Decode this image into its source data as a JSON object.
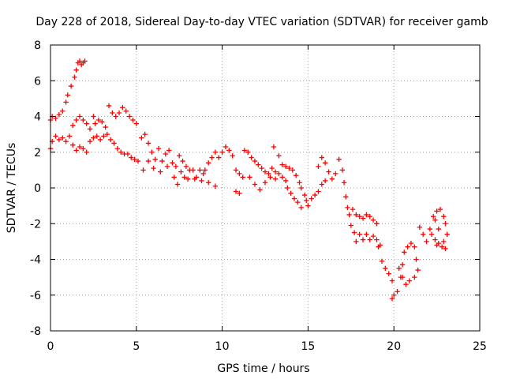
{
  "chart_data": {
    "type": "scatter",
    "title": "Day 228 of 2018, Sidereal Day-to-day VTEC variation (SDTVAR) for receiver gamb",
    "xlabel": "GPS time / hours",
    "ylabel": "SDTVAR / TECUs",
    "xlim": [
      0,
      25
    ],
    "ylim": [
      -8,
      8
    ],
    "xticks": [
      0,
      5,
      10,
      15,
      20,
      25
    ],
    "yticks": [
      -8,
      -6,
      -4,
      -2,
      0,
      2,
      4,
      6,
      8
    ],
    "xtick_labels": [
      "0",
      "5",
      "10",
      "15",
      "20",
      "25"
    ],
    "ytick_labels": [
      "-8",
      "-6",
      "-4",
      "-2",
      "0",
      "2",
      "4",
      "6",
      "8"
    ],
    "grid": true,
    "marker": "+",
    "colors": {
      "series": "#ff0000",
      "grid": "#a0a0a0",
      "axis": "#000000"
    },
    "series": [
      {
        "name": "SDTVAR",
        "points": [
          [
            0.0,
            3.8
          ],
          [
            0.1,
            4.0
          ],
          [
            0.3,
            3.9
          ],
          [
            0.5,
            4.1
          ],
          [
            0.7,
            4.3
          ],
          [
            0.9,
            4.8
          ],
          [
            1.0,
            5.2
          ],
          [
            1.2,
            5.7
          ],
          [
            1.4,
            6.2
          ],
          [
            1.5,
            6.6
          ],
          [
            1.6,
            7.0
          ],
          [
            1.7,
            7.1
          ],
          [
            1.8,
            6.9
          ],
          [
            1.9,
            7.0
          ],
          [
            2.0,
            7.1
          ],
          [
            0.0,
            2.2
          ],
          [
            0.1,
            2.6
          ],
          [
            0.3,
            2.9
          ],
          [
            0.5,
            2.7
          ],
          [
            0.7,
            2.8
          ],
          [
            0.9,
            2.6
          ],
          [
            1.1,
            2.9
          ],
          [
            1.3,
            2.4
          ],
          [
            1.5,
            2.1
          ],
          [
            1.7,
            2.3
          ],
          [
            1.9,
            2.2
          ],
          [
            2.1,
            2.0
          ],
          [
            2.3,
            2.6
          ],
          [
            2.5,
            2.8
          ],
          [
            2.7,
            2.9
          ],
          [
            2.9,
            2.7
          ],
          [
            3.1,
            2.9
          ],
          [
            3.3,
            3.0
          ],
          [
            3.5,
            2.7
          ],
          [
            3.7,
            2.5
          ],
          [
            3.9,
            2.2
          ],
          [
            4.1,
            2.0
          ],
          [
            4.3,
            1.9
          ],
          [
            4.5,
            1.9
          ],
          [
            4.7,
            1.7
          ],
          [
            4.9,
            1.6
          ],
          [
            5.1,
            1.5
          ],
          [
            1.3,
            3.5
          ],
          [
            1.5,
            3.8
          ],
          [
            1.7,
            4.0
          ],
          [
            1.9,
            3.8
          ],
          [
            2.1,
            3.6
          ],
          [
            2.3,
            3.3
          ],
          [
            2.5,
            4.0
          ],
          [
            2.6,
            3.6
          ],
          [
            2.8,
            3.8
          ],
          [
            3.0,
            3.7
          ],
          [
            3.2,
            3.4
          ],
          [
            3.4,
            4.6
          ],
          [
            3.6,
            4.2
          ],
          [
            3.8,
            4.0
          ],
          [
            4.0,
            4.2
          ],
          [
            4.2,
            4.5
          ],
          [
            4.4,
            4.3
          ],
          [
            4.6,
            4.0
          ],
          [
            4.8,
            3.8
          ],
          [
            5.0,
            3.6
          ],
          [
            5.3,
            2.8
          ],
          [
            5.5,
            3.0
          ],
          [
            5.7,
            2.5
          ],
          [
            5.9,
            2.0
          ],
          [
            6.1,
            1.6
          ],
          [
            6.3,
            2.2
          ],
          [
            6.5,
            1.5
          ],
          [
            6.7,
            1.9
          ],
          [
            6.9,
            2.1
          ],
          [
            7.1,
            1.4
          ],
          [
            7.3,
            1.2
          ],
          [
            7.5,
            1.8
          ],
          [
            7.7,
            1.5
          ],
          [
            7.9,
            1.2
          ],
          [
            8.1,
            1.0
          ],
          [
            8.3,
            1.0
          ],
          [
            8.5,
            0.6
          ],
          [
            8.7,
            1.0
          ],
          [
            8.9,
            0.8
          ],
          [
            5.4,
            1.0
          ],
          [
            5.7,
            1.5
          ],
          [
            6.0,
            1.1
          ],
          [
            6.4,
            0.9
          ],
          [
            6.8,
            1.2
          ],
          [
            7.2,
            0.6
          ],
          [
            7.4,
            0.2
          ],
          [
            7.6,
            0.9
          ],
          [
            7.8,
            0.6
          ],
          [
            8.0,
            0.5
          ],
          [
            8.4,
            0.5
          ],
          [
            8.8,
            0.4
          ],
          [
            9.2,
            0.3
          ],
          [
            9.6,
            0.1
          ],
          [
            9.0,
            1.0
          ],
          [
            9.2,
            1.4
          ],
          [
            9.4,
            1.7
          ],
          [
            9.6,
            2.0
          ],
          [
            9.8,
            1.7
          ],
          [
            10.0,
            2.0
          ],
          [
            10.2,
            2.3
          ],
          [
            10.4,
            2.1
          ],
          [
            10.6,
            1.8
          ],
          [
            10.8,
            1.0
          ],
          [
            11.0,
            0.8
          ],
          [
            11.2,
            0.6
          ],
          [
            10.8,
            -0.2
          ],
          [
            11.0,
            -0.3
          ],
          [
            11.3,
            2.1
          ],
          [
            11.5,
            2.0
          ],
          [
            11.7,
            1.7
          ],
          [
            11.9,
            1.5
          ],
          [
            12.1,
            1.3
          ],
          [
            12.3,
            1.1
          ],
          [
            12.5,
            0.9
          ],
          [
            12.7,
            0.8
          ],
          [
            12.9,
            1.1
          ],
          [
            13.1,
            0.9
          ],
          [
            13.3,
            0.8
          ],
          [
            13.5,
            0.6
          ],
          [
            13.7,
            0.4
          ],
          [
            11.6,
            0.6
          ],
          [
            11.9,
            0.2
          ],
          [
            12.2,
            -0.1
          ],
          [
            12.5,
            0.3
          ],
          [
            12.8,
            0.6
          ],
          [
            13.1,
            0.5
          ],
          [
            13.0,
            2.3
          ],
          [
            13.3,
            1.8
          ],
          [
            13.5,
            1.3
          ],
          [
            13.7,
            1.2
          ],
          [
            13.9,
            1.1
          ],
          [
            14.1,
            1.0
          ],
          [
            14.3,
            0.7
          ],
          [
            14.5,
            0.3
          ],
          [
            14.6,
            0.0
          ],
          [
            14.8,
            -0.4
          ],
          [
            14.9,
            -0.7
          ],
          [
            15.0,
            -1.0
          ],
          [
            15.2,
            -0.6
          ],
          [
            15.4,
            -0.4
          ],
          [
            15.6,
            -0.2
          ],
          [
            15.8,
            0.2
          ],
          [
            16.0,
            0.4
          ],
          [
            13.8,
            0.0
          ],
          [
            14.0,
            -0.3
          ],
          [
            14.2,
            -0.6
          ],
          [
            14.4,
            -0.8
          ],
          [
            14.6,
            -1.1
          ],
          [
            15.6,
            1.2
          ],
          [
            15.8,
            1.7
          ],
          [
            16.0,
            1.4
          ],
          [
            16.2,
            0.9
          ],
          [
            16.4,
            0.5
          ],
          [
            16.6,
            0.8
          ],
          [
            16.8,
            1.6
          ],
          [
            17.0,
            1.0
          ],
          [
            17.1,
            0.3
          ],
          [
            17.2,
            -0.5
          ],
          [
            17.3,
            -1.1
          ],
          [
            17.4,
            -1.5
          ],
          [
            17.6,
            -1.2
          ],
          [
            17.8,
            -1.5
          ],
          [
            18.0,
            -1.6
          ],
          [
            18.2,
            -1.7
          ],
          [
            18.4,
            -1.5
          ],
          [
            18.6,
            -1.6
          ],
          [
            18.8,
            -1.8
          ],
          [
            19.0,
            -2.0
          ],
          [
            17.5,
            -2.1
          ],
          [
            17.7,
            -2.5
          ],
          [
            17.8,
            -3.0
          ],
          [
            18.0,
            -2.6
          ],
          [
            18.2,
            -2.9
          ],
          [
            18.4,
            -2.6
          ],
          [
            18.6,
            -2.9
          ],
          [
            18.8,
            -2.7
          ],
          [
            19.0,
            -2.9
          ],
          [
            19.1,
            -3.3
          ],
          [
            19.0,
            -2.0
          ],
          [
            19.2,
            -3.2
          ],
          [
            19.3,
            -4.1
          ],
          [
            19.5,
            -4.5
          ],
          [
            19.7,
            -4.8
          ],
          [
            19.9,
            -5.2
          ],
          [
            19.9,
            -6.2
          ],
          [
            20.0,
            -6.0
          ],
          [
            20.2,
            -5.8
          ],
          [
            20.3,
            -4.5
          ],
          [
            20.4,
            -5.0
          ],
          [
            20.5,
            -4.3
          ],
          [
            20.6,
            -3.6
          ],
          [
            20.8,
            -3.3
          ],
          [
            21.0,
            -3.1
          ],
          [
            21.2,
            -3.3
          ],
          [
            21.3,
            -4.0
          ],
          [
            21.4,
            -4.6
          ],
          [
            21.2,
            -5.0
          ],
          [
            20.9,
            -5.2
          ],
          [
            20.7,
            -5.4
          ],
          [
            20.5,
            -5.0
          ],
          [
            21.5,
            -2.2
          ],
          [
            21.7,
            -2.6
          ],
          [
            21.9,
            -3.0
          ],
          [
            22.1,
            -2.3
          ],
          [
            22.3,
            -1.6
          ],
          [
            22.5,
            -1.3
          ],
          [
            22.7,
            -1.2
          ],
          [
            22.9,
            -1.6
          ],
          [
            23.0,
            -2.0
          ],
          [
            23.1,
            -2.6
          ],
          [
            22.9,
            -3.0
          ],
          [
            22.6,
            -3.1
          ],
          [
            22.4,
            -2.9
          ],
          [
            22.2,
            -2.6
          ],
          [
            22.5,
            -3.2
          ],
          [
            22.8,
            -3.3
          ],
          [
            23.0,
            -3.4
          ],
          [
            22.4,
            -1.8
          ],
          [
            22.6,
            -2.3
          ]
        ]
      }
    ]
  }
}
